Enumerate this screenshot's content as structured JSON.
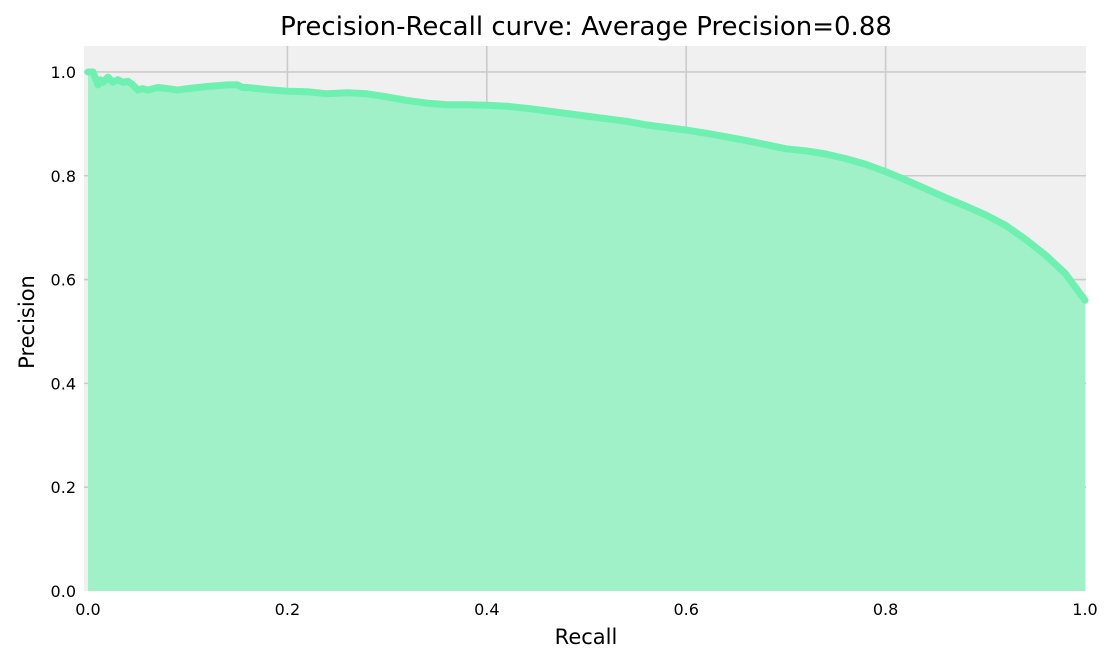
{
  "chart_data": {
    "type": "area",
    "title": "Precision-Recall curve: Average Precision=0.88",
    "xlabel": "Recall",
    "ylabel": "Precision",
    "xlim": [
      0.0,
      1.0
    ],
    "ylim": [
      0.0,
      1.05
    ],
    "grid": true,
    "legend": "none",
    "x_ticks": [
      "0.0",
      "0.2",
      "0.4",
      "0.6",
      "0.8",
      "1.0"
    ],
    "y_ticks": [
      "0.0",
      "0.2",
      "0.4",
      "0.6",
      "0.8",
      "1.0"
    ],
    "colors": {
      "line": "#6ef0b0",
      "fill": "#a0f0c8",
      "plot_background": "#f0f0f0",
      "grid": "#cbcbcb"
    },
    "series": [
      {
        "x": [
          0.0,
          0.005,
          0.01,
          0.012,
          0.015,
          0.02,
          0.025,
          0.03,
          0.035,
          0.04,
          0.045,
          0.05,
          0.055,
          0.06,
          0.07,
          0.08,
          0.09,
          0.1,
          0.12,
          0.14,
          0.15,
          0.155,
          0.16,
          0.18,
          0.2,
          0.22,
          0.24,
          0.26,
          0.28,
          0.3,
          0.32,
          0.34,
          0.36,
          0.38,
          0.4,
          0.42,
          0.44,
          0.46,
          0.48,
          0.5,
          0.52,
          0.54,
          0.56,
          0.58,
          0.6,
          0.62,
          0.64,
          0.66,
          0.68,
          0.7,
          0.72,
          0.74,
          0.76,
          0.78,
          0.8,
          0.82,
          0.84,
          0.86,
          0.88,
          0.9,
          0.92,
          0.94,
          0.96,
          0.98,
          1.0
        ],
        "y": [
          1.0,
          1.0,
          0.975,
          0.985,
          0.98,
          0.99,
          0.98,
          0.985,
          0.98,
          0.982,
          0.975,
          0.965,
          0.968,
          0.965,
          0.97,
          0.968,
          0.965,
          0.968,
          0.972,
          0.975,
          0.975,
          0.97,
          0.97,
          0.966,
          0.963,
          0.962,
          0.958,
          0.96,
          0.958,
          0.952,
          0.945,
          0.94,
          0.937,
          0.937,
          0.936,
          0.934,
          0.93,
          0.925,
          0.92,
          0.915,
          0.91,
          0.905,
          0.898,
          0.893,
          0.888,
          0.882,
          0.875,
          0.868,
          0.86,
          0.852,
          0.848,
          0.842,
          0.833,
          0.822,
          0.808,
          0.792,
          0.775,
          0.758,
          0.742,
          0.725,
          0.705,
          0.678,
          0.648,
          0.612,
          0.56
        ]
      }
    ]
  }
}
